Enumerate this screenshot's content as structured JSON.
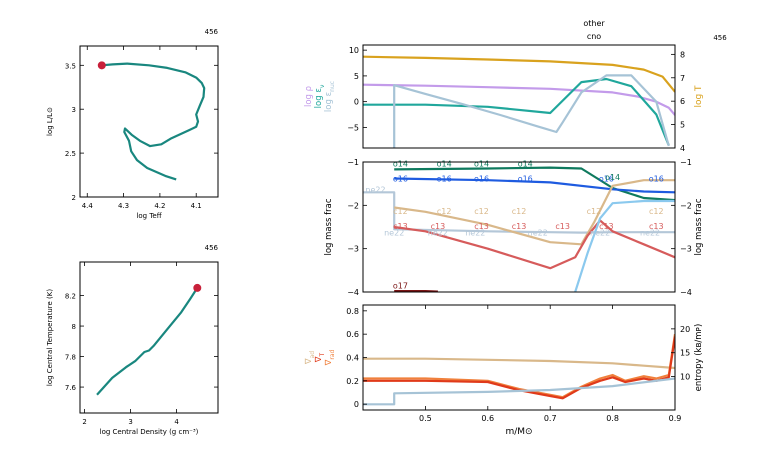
{
  "model_number": "456",
  "header": {
    "line1": "other",
    "line2": "cno"
  },
  "chart_data": [
    {
      "id": "hr",
      "type": "line",
      "title": "456",
      "xlabel": "log Teff",
      "ylabel": "log L/L⊙",
      "xlim": [
        4.42,
        4.04
      ],
      "ylim": [
        2.0,
        3.72
      ],
      "xticks": [
        4.4,
        4.3,
        4.2,
        4.1
      ],
      "xtick_labels": [
        "4.4",
        "4.3",
        "4.2",
        "4.1"
      ],
      "yticks": [
        2.0,
        2.5,
        3.0,
        3.5
      ],
      "ytick_labels": [
        "2",
        "2.5",
        "3",
        "3.5"
      ],
      "series": [
        {
          "color": "#19877f",
          "x": [
            4.155,
            4.185,
            4.235,
            4.263,
            4.279,
            4.285,
            4.298,
            4.296,
            4.278,
            4.255,
            4.227,
            4.196,
            4.168,
            4.12,
            4.1,
            4.095,
            4.1,
            4.09,
            4.08,
            4.078,
            4.085,
            4.1,
            4.13,
            4.18,
            4.23,
            4.29,
            4.33,
            4.36
          ],
          "y": [
            2.2,
            2.24,
            2.33,
            2.42,
            2.52,
            2.64,
            2.74,
            2.78,
            2.71,
            2.64,
            2.58,
            2.6,
            2.67,
            2.76,
            2.8,
            2.86,
            2.94,
            3.04,
            3.14,
            3.24,
            3.3,
            3.36,
            3.42,
            3.47,
            3.5,
            3.52,
            3.51,
            3.5
          ]
        }
      ],
      "marker": {
        "x": 4.36,
        "y": 3.5,
        "color": "#c8203a"
      }
    },
    {
      "id": "center",
      "type": "line",
      "title": "456",
      "xlabel": "log Central Density (g cm⁻³)",
      "ylabel": "log Central Temperature (K)",
      "xlim": [
        1.9,
        4.9
      ],
      "ylim": [
        7.43,
        8.42
      ],
      "xticks": [
        2,
        3,
        4
      ],
      "xtick_labels": [
        "2",
        "3",
        "4"
      ],
      "yticks": [
        7.6,
        7.8,
        8.0,
        8.2
      ],
      "ytick_labels": [
        "7.6",
        "7.8",
        "8",
        "8.2"
      ],
      "series": [
        {
          "color": "#19877f",
          "x": [
            2.27,
            2.6,
            2.9,
            3.1,
            3.3,
            3.4,
            3.5,
            3.8,
            4.1,
            4.3,
            4.45
          ],
          "y": [
            7.55,
            7.66,
            7.73,
            7.77,
            7.83,
            7.84,
            7.87,
            7.98,
            8.09,
            8.18,
            8.25
          ]
        }
      ],
      "marker": {
        "x": 4.45,
        "y": 8.25,
        "color": "#c8203a"
      }
    },
    {
      "id": "profile-top",
      "type": "line",
      "xlim": [
        0.4,
        0.9
      ],
      "ylim": [
        -9,
        11
      ],
      "yticks": [
        -5,
        0,
        5,
        10
      ],
      "ytick_labels": [
        "−5",
        "0",
        "5",
        "10"
      ],
      "ylabels_left": [
        {
          "text": "log ρ",
          "color": "#c39bea"
        },
        {
          "text": "log ε",
          "sub": "ν",
          "color": "#20a79c"
        },
        {
          "text": "log ε",
          "sub": "nuc",
          "color": "#a6c3d6"
        }
      ],
      "y2lim": [
        4,
        8.4
      ],
      "y2ticks": [
        4,
        5,
        6,
        7,
        8
      ],
      "y2tick_labels": [
        "4",
        "5",
        "6",
        "7",
        "8"
      ],
      "y2label": {
        "text": "log T",
        "color": "#d9a21e"
      },
      "series": [
        {
          "axis": "y2",
          "color": "#d9a21e",
          "x": [
            0.4,
            0.5,
            0.6,
            0.7,
            0.8,
            0.85,
            0.88,
            0.9
          ],
          "y": [
            7.9,
            7.85,
            7.78,
            7.7,
            7.55,
            7.35,
            7.05,
            6.4
          ]
        },
        {
          "color": "#c39bea",
          "x": [
            0.4,
            0.5,
            0.6,
            0.7,
            0.8,
            0.84,
            0.87,
            0.89,
            0.9
          ],
          "y": [
            3.3,
            3.1,
            2.8,
            2.5,
            1.8,
            1.0,
            0.0,
            -1.2,
            -2.6
          ]
        },
        {
          "color": "#20a79c",
          "x": [
            0.4,
            0.5,
            0.6,
            0.7,
            0.75,
            0.79,
            0.83,
            0.87,
            0.89
          ],
          "y": [
            -0.6,
            -0.6,
            -1.0,
            -2.2,
            3.8,
            4.4,
            3.0,
            -2.5,
            -8.5
          ]
        },
        {
          "color": "#a6c3d6",
          "x": [
            0.45,
            0.45,
            0.5,
            0.56,
            0.62,
            0.68,
            0.71,
            0.72,
            0.75,
            0.79,
            0.83,
            0.87,
            0.89
          ],
          "y": [
            -9,
            3.2,
            1.5,
            -0.5,
            -2.6,
            -4.8,
            -5.9,
            -4.0,
            1.8,
            5.1,
            5.1,
            0.0,
            -8.6
          ]
        }
      ]
    },
    {
      "id": "profile-mid",
      "type": "line",
      "xlim": [
        0.4,
        0.9
      ],
      "ylim": [
        -4,
        -1
      ],
      "yticks": [
        -4,
        -3,
        -2,
        -1
      ],
      "ytick_labels": [
        "−4",
        "−3",
        "−2",
        "−1"
      ],
      "ylabel": "log mass frac",
      "y2label": "log mass frac",
      "series": [
        {
          "name": "o14",
          "color": "#0f7a5e",
          "x": [
            0.45,
            0.6,
            0.7,
            0.75,
            0.8,
            0.85,
            0.9
          ],
          "y": [
            -1.17,
            -1.15,
            -1.13,
            -1.15,
            -1.6,
            -1.83,
            -1.88
          ]
        },
        {
          "name": "o16",
          "color": "#1e5be0",
          "x": [
            0.45,
            0.6,
            0.7,
            0.8,
            0.85,
            0.9
          ],
          "y": [
            -1.38,
            -1.42,
            -1.47,
            -1.63,
            -1.68,
            -1.7
          ]
        },
        {
          "name": "ne22",
          "color": "#b4c7d8",
          "x": [
            0.4,
            0.45,
            0.45,
            0.6,
            0.7,
            0.75,
            0.8,
            0.9
          ],
          "y": [
            -1.7,
            -1.7,
            -2.55,
            -2.6,
            -2.62,
            -2.63,
            -2.62,
            -2.62
          ]
        },
        {
          "name": "c12",
          "color": "#d9b88a",
          "x": [
            0.45,
            0.5,
            0.6,
            0.7,
            0.75,
            0.77,
            0.8,
            0.85,
            0.9
          ],
          "y": [
            -2.05,
            -2.15,
            -2.45,
            -2.85,
            -2.9,
            -2.4,
            -1.55,
            -1.42,
            -1.42
          ]
        },
        {
          "name": "c13",
          "color": "#d65b5b",
          "x": [
            0.45,
            0.5,
            0.6,
            0.7,
            0.74,
            0.76,
            0.78,
            0.8,
            0.85,
            0.9
          ],
          "y": [
            -2.5,
            -2.6,
            -3.0,
            -3.45,
            -3.2,
            -2.7,
            -2.35,
            -2.6,
            -2.9,
            -3.2
          ]
        },
        {
          "name": "n15",
          "color": "#8bc9ee",
          "x": [
            0.74,
            0.76,
            0.78,
            0.8,
            0.85,
            0.9
          ],
          "y": [
            -4.0,
            -3.1,
            -2.3,
            -1.95,
            -1.9,
            -1.9
          ]
        },
        {
          "name": "o17",
          "color": "#7a1414",
          "x": [
            0.45,
            0.5,
            0.52
          ],
          "y": [
            -3.98,
            -3.98,
            -3.99
          ]
        }
      ],
      "line_labels": [
        {
          "text": "o14",
          "x": [
            0.46,
            0.53,
            0.59,
            0.66
          ],
          "y": -1.1,
          "color": "#0f7a5e"
        },
        {
          "text": "o16",
          "x": [
            0.46,
            0.53,
            0.59,
            0.66,
            0.79,
            0.87
          ],
          "y": -1.45,
          "color": "#1e5be0"
        },
        {
          "text": "o14",
          "x": [
            0.8
          ],
          "y": -1.42,
          "color": "#0f7a5e"
        },
        {
          "text": "ne22",
          "x": [
            0.42
          ],
          "y": -1.7,
          "color": "#b4c7d8"
        },
        {
          "text": "c12",
          "x": [
            0.46,
            0.53,
            0.59,
            0.65,
            0.77,
            0.87
          ],
          "y": -2.2,
          "color": "#d9b88a"
        },
        {
          "text": "c13",
          "x": [
            0.46,
            0.52,
            0.59,
            0.65,
            0.72,
            0.79,
            0.87
          ],
          "y": -2.55,
          "color": "#d65b5b"
        },
        {
          "text": "ne22",
          "x": [
            0.45,
            0.52,
            0.58,
            0.68,
            0.78,
            0.86
          ],
          "y": -2.7,
          "color": "#b4c7d8"
        },
        {
          "text": "o17",
          "x": [
            0.46
          ],
          "y": -3.92,
          "color": "#7a1414"
        }
      ]
    },
    {
      "id": "profile-bottom",
      "type": "line",
      "xlim": [
        0.4,
        0.9
      ],
      "ylim": [
        -0.05,
        0.85
      ],
      "xticks": [
        0.5,
        0.6,
        0.7,
        0.8,
        0.9
      ],
      "xtick_labels": [
        "0.5",
        "0.6",
        "0.7",
        "0.8",
        "0.9"
      ],
      "xlabel": "m/M⊙",
      "yticks": [
        0,
        0.2,
        0.4,
        0.6,
        0.8
      ],
      "ytick_labels": [
        "0",
        "0.2",
        "0.4",
        "0.6",
        "0.8"
      ],
      "ylabels_left": [
        {
          "text": "∇",
          "sub": "ad",
          "color": "#d9b88a"
        },
        {
          "text": "∇",
          "sub": "T",
          "color": "#e03a1a"
        },
        {
          "text": "∇",
          "sub": "rad",
          "color": "#f0803c"
        }
      ],
      "y2lim": [
        3,
        25
      ],
      "y2ticks": [
        10,
        15,
        20
      ],
      "y2tick_labels": [
        "10",
        "15",
        "20"
      ],
      "y2label": "entropy (kʙ/mᴘ)",
      "series": [
        {
          "name": "grad_ad",
          "color": "#d9b88a",
          "x": [
            0.4,
            0.5,
            0.6,
            0.7,
            0.8,
            0.85,
            0.9
          ],
          "y": [
            0.39,
            0.39,
            0.38,
            0.37,
            0.35,
            0.33,
            0.31
          ]
        },
        {
          "name": "grad_rad",
          "color": "#f0803c",
          "x": [
            0.4,
            0.5,
            0.6,
            0.65,
            0.7,
            0.72,
            0.75,
            0.78,
            0.8,
            0.82,
            0.85,
            0.87,
            0.89,
            0.9
          ],
          "y": [
            0.22,
            0.22,
            0.2,
            0.13,
            0.08,
            0.06,
            0.15,
            0.22,
            0.25,
            0.2,
            0.24,
            0.22,
            0.25,
            0.6
          ]
        },
        {
          "name": "grad_T",
          "color": "#e03a1a",
          "x": [
            0.4,
            0.5,
            0.6,
            0.65,
            0.7,
            0.72,
            0.75,
            0.78,
            0.8,
            0.82,
            0.85,
            0.87,
            0.89,
            0.9
          ],
          "y": [
            0.2,
            0.2,
            0.19,
            0.12,
            0.07,
            0.05,
            0.14,
            0.2,
            0.23,
            0.19,
            0.22,
            0.2,
            0.23,
            0.58
          ]
        },
        {
          "name": "entropy",
          "axis": "y2",
          "color": "#a6c3d6",
          "x": [
            0.4,
            0.45,
            0.45,
            0.6,
            0.7,
            0.8,
            0.9
          ],
          "y": [
            4.2,
            4.2,
            6.5,
            6.8,
            7.2,
            8.0,
            9.6
          ]
        }
      ]
    }
  ]
}
